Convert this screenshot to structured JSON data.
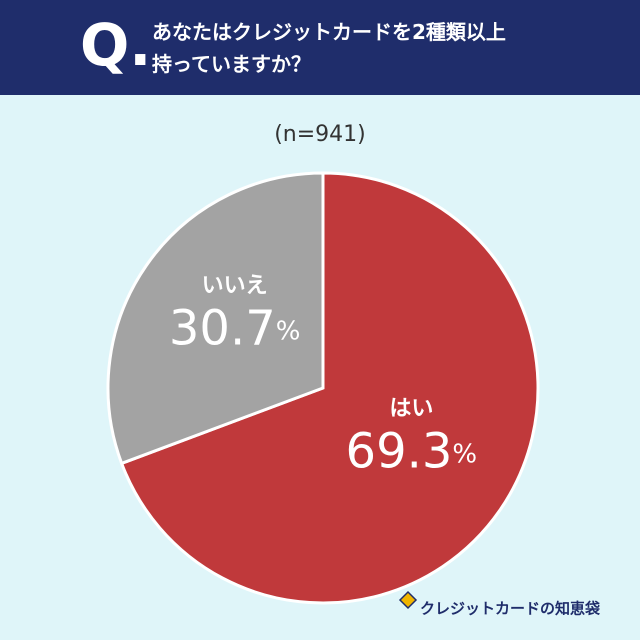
{
  "chart_data": {
    "type": "pie",
    "question_label": "Q.",
    "title": "あなたはクレジットカードを2種類以上持っていますか？",
    "subtitle": "(n=941)",
    "categories": [
      "はい",
      "いいえ"
    ],
    "values": [
      69.3,
      30.7
    ],
    "value_labels": [
      "69.3%",
      "30.7%"
    ],
    "colors": [
      "#c0393b",
      "#a3a3a3"
    ],
    "brand": "クレジットカードの知恵袋"
  }
}
